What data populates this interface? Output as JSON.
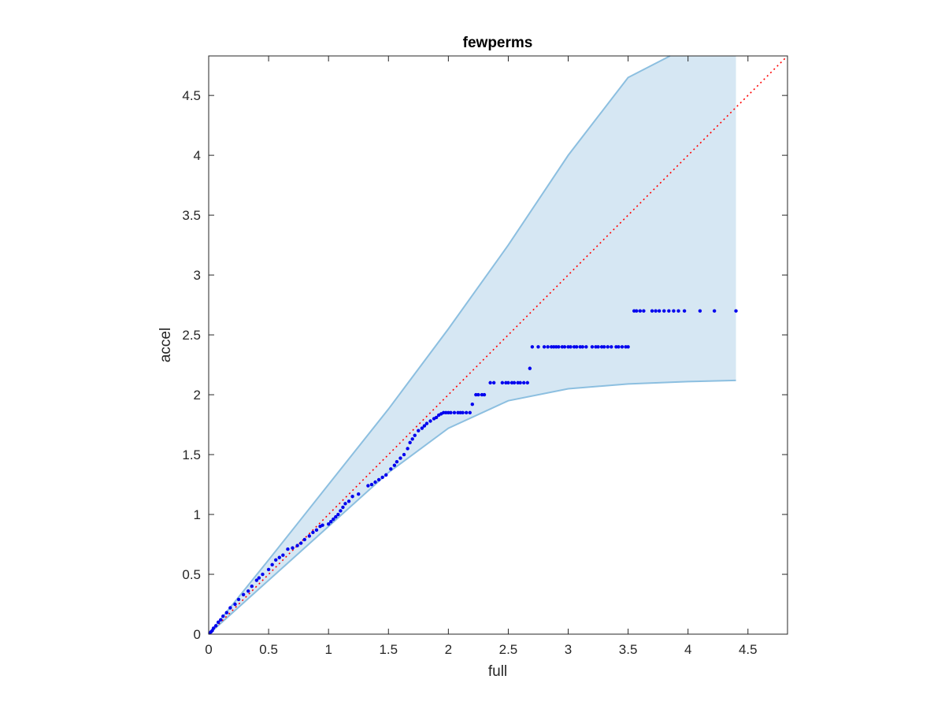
{
  "chart_data": {
    "type": "scatter",
    "title": "fewperms",
    "xlabel": "full",
    "ylabel": "accel",
    "xlim": [
      0,
      4.83
    ],
    "ylim": [
      0,
      4.83
    ],
    "xticks": [
      "0",
      "0.5",
      "1",
      "1.5",
      "2",
      "2.5",
      "3",
      "3.5",
      "4",
      "4.5"
    ],
    "yticks": [
      "0",
      "0.5",
      "1",
      "1.5",
      "2",
      "2.5",
      "3",
      "3.5",
      "4",
      "4.5"
    ],
    "grid": false,
    "colors": {
      "points": "#0000ee",
      "reference": "#ff0000",
      "band_fill": "#d6e7f3",
      "band_edge": "#8cbfe0",
      "axis": "#262626"
    },
    "reference_line": {
      "style": "dotted",
      "x": [
        0,
        4.83
      ],
      "y": [
        0,
        4.83
      ]
    },
    "band": {
      "x_end": 4.4,
      "upper": {
        "x": [
          0,
          0.5,
          1,
          1.5,
          2,
          2.5,
          3,
          3.5,
          3.85
        ],
        "y": [
          0,
          0.62,
          1.25,
          1.88,
          2.55,
          3.25,
          4.0,
          4.65,
          4.83
        ]
      },
      "lower": {
        "x": [
          0,
          0.5,
          1,
          1.5,
          2,
          2.5,
          3,
          3.5,
          4,
          4.4
        ],
        "y": [
          0,
          0.45,
          0.9,
          1.35,
          1.72,
          1.95,
          2.05,
          2.09,
          2.11,
          2.12
        ]
      }
    },
    "series": [
      {
        "x": [
          0.01,
          0.02,
          0.03,
          0.04,
          0.06,
          0.08,
          0.1,
          0.12,
          0.15,
          0.18,
          0.22,
          0.25,
          0.29,
          0.33,
          0.36,
          0.4,
          0.42,
          0.45,
          0.5,
          0.53,
          0.56,
          0.59,
          0.62,
          0.66,
          0.7,
          0.74,
          0.77,
          0.8,
          0.84,
          0.87,
          0.9,
          0.93,
          0.95,
          1.0,
          1.02,
          1.04,
          1.06,
          1.08,
          1.1,
          1.12,
          1.14,
          1.17,
          1.2,
          1.25,
          1.33,
          1.36,
          1.39,
          1.42,
          1.45,
          1.48,
          1.52,
          1.55,
          1.57,
          1.6,
          1.63,
          1.66,
          1.68,
          1.7,
          1.72,
          1.75,
          1.78,
          1.8,
          1.82,
          1.85,
          1.88,
          1.9,
          1.92,
          1.94,
          1.96,
          1.98,
          2.0,
          2.02,
          2.05,
          2.08,
          2.1,
          2.12,
          2.15,
          2.18,
          2.2,
          2.23,
          2.25,
          2.28,
          2.3,
          2.35,
          2.38,
          2.45,
          2.48,
          2.5,
          2.53,
          2.55,
          2.58,
          2.6,
          2.63,
          2.66,
          2.68,
          2.7,
          2.75,
          2.8,
          2.83,
          2.86,
          2.88,
          2.9,
          2.92,
          2.95,
          2.97,
          3.0,
          3.02,
          3.05,
          3.07,
          3.1,
          3.12,
          3.15,
          3.2,
          3.23,
          3.25,
          3.28,
          3.3,
          3.33,
          3.36,
          3.4,
          3.42,
          3.45,
          3.48,
          3.5,
          3.55,
          3.57,
          3.6,
          3.63,
          3.7,
          3.73,
          3.76,
          3.8,
          3.84,
          3.88,
          3.92,
          3.97,
          4.1,
          4.22,
          4.4
        ],
        "y": [
          0.01,
          0.02,
          0.03,
          0.05,
          0.07,
          0.1,
          0.12,
          0.15,
          0.18,
          0.22,
          0.25,
          0.29,
          0.33,
          0.36,
          0.4,
          0.45,
          0.47,
          0.5,
          0.54,
          0.58,
          0.62,
          0.64,
          0.66,
          0.71,
          0.72,
          0.74,
          0.76,
          0.79,
          0.82,
          0.85,
          0.87,
          0.9,
          0.91,
          0.92,
          0.94,
          0.96,
          0.98,
          1.0,
          1.03,
          1.06,
          1.09,
          1.11,
          1.15,
          1.17,
          1.24,
          1.25,
          1.27,
          1.29,
          1.31,
          1.33,
          1.38,
          1.41,
          1.44,
          1.47,
          1.5,
          1.55,
          1.6,
          1.63,
          1.66,
          1.7,
          1.72,
          1.74,
          1.76,
          1.78,
          1.8,
          1.81,
          1.83,
          1.84,
          1.85,
          1.85,
          1.85,
          1.85,
          1.85,
          1.85,
          1.85,
          1.85,
          1.85,
          1.85,
          1.92,
          2.0,
          2.0,
          2.0,
          2.0,
          2.1,
          2.1,
          2.1,
          2.1,
          2.1,
          2.1,
          2.1,
          2.1,
          2.1,
          2.1,
          2.1,
          2.22,
          2.4,
          2.4,
          2.4,
          2.4,
          2.4,
          2.4,
          2.4,
          2.4,
          2.4,
          2.4,
          2.4,
          2.4,
          2.4,
          2.4,
          2.4,
          2.4,
          2.4,
          2.4,
          2.4,
          2.4,
          2.4,
          2.4,
          2.4,
          2.4,
          2.4,
          2.4,
          2.4,
          2.4,
          2.4,
          2.7,
          2.7,
          2.7,
          2.7,
          2.7,
          2.7,
          2.7,
          2.7,
          2.7,
          2.7,
          2.7,
          2.7,
          2.7,
          2.7,
          2.7
        ]
      }
    ]
  }
}
